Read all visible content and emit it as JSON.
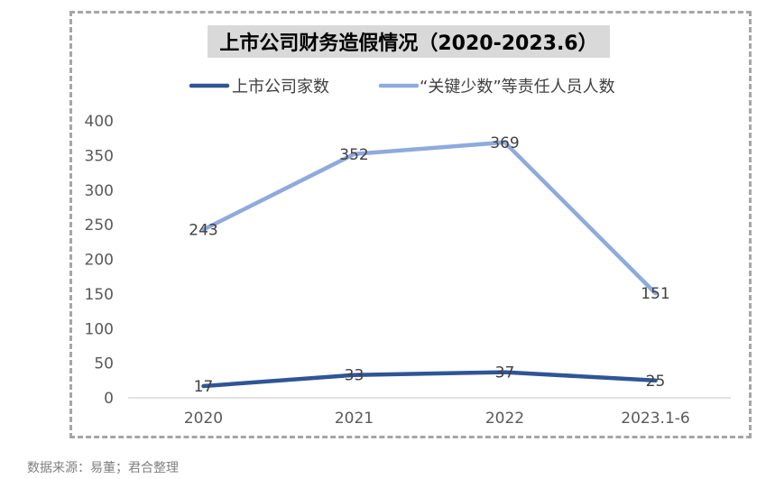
{
  "chart_data": {
    "type": "line",
    "title": "上市公司财务造假情况（2020-2023.6）",
    "categories": [
      "2020",
      "2021",
      "2022",
      "2023.1-6"
    ],
    "series": [
      {
        "name": "上市公司家数",
        "values": [
          17,
          33,
          37,
          25
        ],
        "color": "#2f5597"
      },
      {
        "name": "“关键少数”等责任人员人数",
        "values": [
          243,
          352,
          369,
          151
        ],
        "color": "#8faadc"
      }
    ],
    "ylim": [
      0,
      400
    ],
    "yticks": [
      0,
      50,
      100,
      150,
      200,
      250,
      300,
      350,
      400
    ],
    "legend": "top",
    "grid": false
  },
  "source": "数据来源：易董；君合整理"
}
